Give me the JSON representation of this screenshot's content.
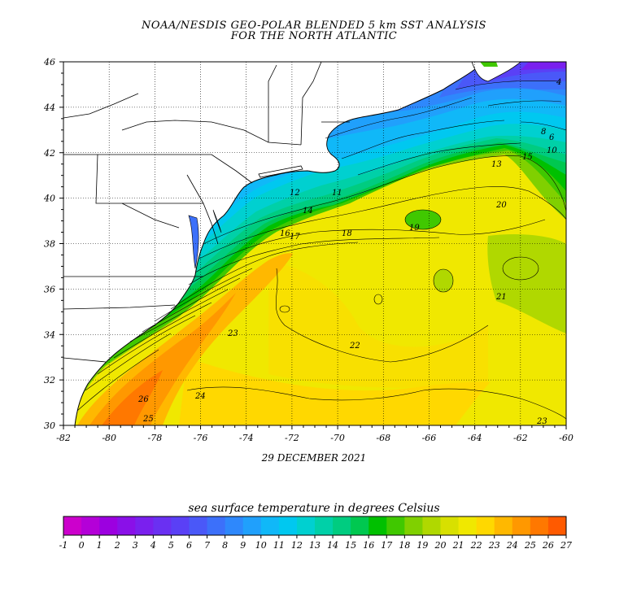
{
  "title": {
    "line1": "NOAA/NESDIS GEO-POLAR BLENDED 5 km SST ANALYSIS",
    "line2": "FOR THE NORTH ATLANTIC"
  },
  "date_label": "29 DECEMBER 2021",
  "colorbar": {
    "title": "sea surface temperature in degrees Celsius",
    "ticks": [
      "-1",
      "0",
      "1",
      "2",
      "3",
      "4",
      "5",
      "6",
      "7",
      "8",
      "9",
      "10",
      "11",
      "12",
      "13",
      "14",
      "15",
      "16",
      "17",
      "18",
      "19",
      "20",
      "21",
      "22",
      "23",
      "24",
      "25",
      "26",
      "27"
    ],
    "colors": [
      "#cc00cc",
      "#b400d8",
      "#9c00e0",
      "#8a10e8",
      "#7a20ee",
      "#6a30f2",
      "#5a40f6",
      "#4a58f8",
      "#3c70fa",
      "#2e88fc",
      "#20a0fc",
      "#10b8f8",
      "#00c8f0",
      "#00d0d0",
      "#00d0a8",
      "#00cc80",
      "#00c850",
      "#00c000",
      "#40c800",
      "#80d000",
      "#b0d800",
      "#d8e000",
      "#f0e800",
      "#ffd800",
      "#ffb800",
      "#ff9800",
      "#ff7800",
      "#ff5a00"
    ]
  },
  "axes": {
    "lat_ticks": [
      "46",
      "44",
      "42",
      "40",
      "38",
      "36",
      "34",
      "32",
      "30"
    ],
    "lon_ticks": [
      "-82",
      "-80",
      "-78",
      "-76",
      "-74",
      "-72",
      "-70",
      "-68",
      "-66",
      "-64",
      "-62",
      "-60"
    ]
  },
  "contour_labels": [
    "4",
    "6",
    "8",
    "10",
    "11",
    "12",
    "13",
    "14",
    "15",
    "16",
    "17",
    "18",
    "19",
    "20",
    "21",
    "22",
    "23",
    "24",
    "25",
    "26"
  ]
}
